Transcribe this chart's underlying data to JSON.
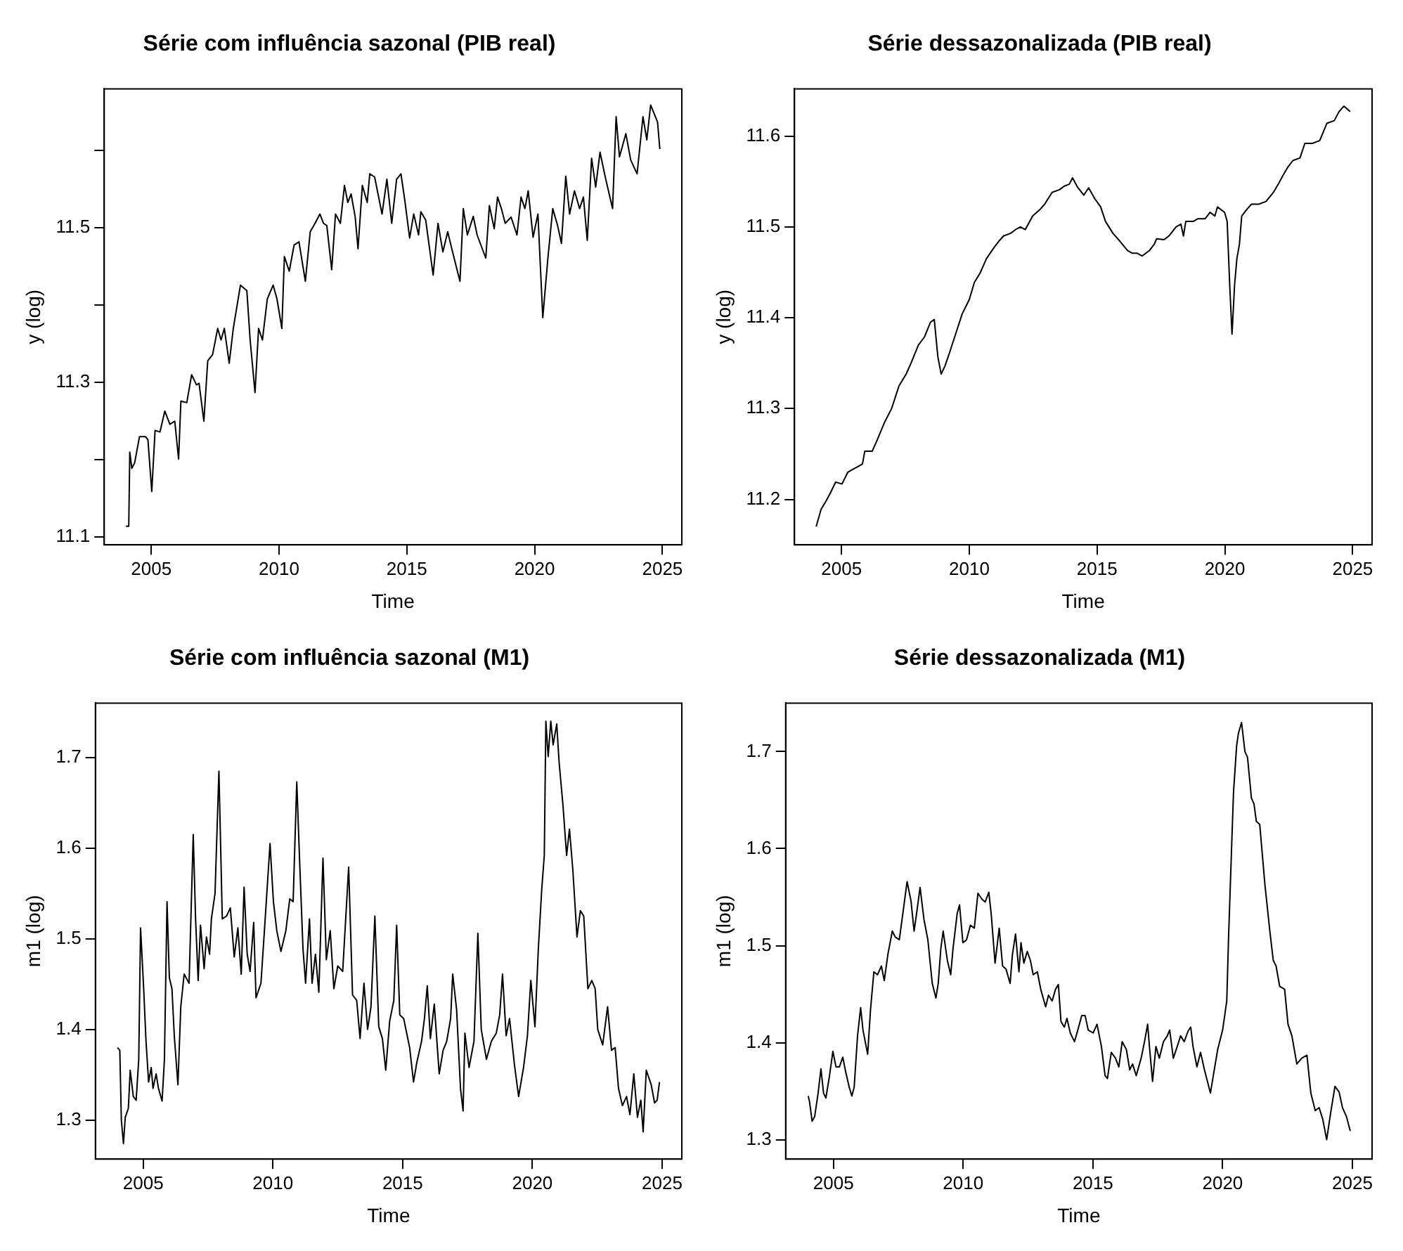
{
  "chart_data": [
    {
      "type": "line",
      "title": "Série com influência sazonal (PIB real)",
      "xlabel": "Time",
      "ylabel": "y (log)",
      "xlim": [
        2003.16,
        2025.76
      ],
      "ylim": [
        11.09,
        11.68
      ],
      "xticks": [
        2005,
        2010,
        2015,
        2020,
        2025
      ],
      "yticks": [
        11.1,
        {
          "value": 11.2,
          "label": null
        },
        11.3,
        {
          "value": 11.4,
          "label": null
        },
        11.5,
        {
          "value": 11.6,
          "label": null
        }
      ],
      "grid": false,
      "series": [
        {
          "color": "#000000",
          "x": [
            2004.01,
            2004.12,
            2004.16,
            2004.24,
            2004.35,
            2004.54,
            2004.77,
            2004.87,
            2005.02,
            2005.15,
            2005.34,
            2005.53,
            2005.73,
            2005.92,
            2006.07,
            2006.16,
            2006.39,
            2006.58,
            2006.77,
            2006.87,
            2007.06,
            2007.21,
            2007.4,
            2007.6,
            2007.73,
            2007.86,
            2008.05,
            2008.21,
            2008.49,
            2008.74,
            2008.87,
            2009.06,
            2009.2,
            2009.35,
            2009.54,
            2009.77,
            2009.92,
            2010.11,
            2010.21,
            2010.4,
            2010.59,
            2010.78,
            2011.03,
            2011.22,
            2011.41,
            2011.6,
            2011.74,
            2011.87,
            2012.06,
            2012.21,
            2012.4,
            2012.56,
            2012.69,
            2012.82,
            2012.98,
            2013.09,
            2013.26,
            2013.45,
            2013.55,
            2013.74,
            2014.03,
            2014.22,
            2014.41,
            2014.6,
            2014.77,
            2014.92,
            2015.11,
            2015.27,
            2015.46,
            2015.55,
            2015.74,
            2016.03,
            2016.22,
            2016.41,
            2016.6,
            2016.79,
            2017.08,
            2017.21,
            2017.37,
            2017.6,
            2017.75,
            2018.09,
            2018.23,
            2018.42,
            2018.55,
            2018.7,
            2018.85,
            2019.08,
            2019.31,
            2019.47,
            2019.62,
            2019.75,
            2019.94,
            2020.13,
            2020.32,
            2020.52,
            2020.71,
            2020.9,
            2021.05,
            2021.22,
            2021.37,
            2021.56,
            2021.76,
            2021.91,
            2022.06,
            2022.23,
            2022.39,
            2022.56,
            2022.75,
            2023.05,
            2023.19,
            2023.32,
            2023.57,
            2023.76,
            2024.01,
            2024.24,
            2024.39,
            2024.54,
            2024.81,
            2024.9
          ],
          "values": [
            11.114,
            11.114,
            11.21,
            11.189,
            11.196,
            11.23,
            11.23,
            11.226,
            11.159,
            11.238,
            11.236,
            11.263,
            11.246,
            11.25,
            11.201,
            11.276,
            11.274,
            11.31,
            11.297,
            11.299,
            11.25,
            11.328,
            11.336,
            11.37,
            11.355,
            11.37,
            11.325,
            11.37,
            11.426,
            11.419,
            11.355,
            11.287,
            11.37,
            11.355,
            11.408,
            11.426,
            11.408,
            11.37,
            11.463,
            11.444,
            11.478,
            11.482,
            11.431,
            11.495,
            11.506,
            11.518,
            11.506,
            11.503,
            11.446,
            11.518,
            11.506,
            11.555,
            11.533,
            11.544,
            11.514,
            11.473,
            11.555,
            11.533,
            11.57,
            11.566,
            11.518,
            11.563,
            11.506,
            11.563,
            11.57,
            11.536,
            11.487,
            11.518,
            11.491,
            11.521,
            11.51,
            11.439,
            11.506,
            11.469,
            11.495,
            11.469,
            11.431,
            11.525,
            11.491,
            11.515,
            11.491,
            11.461,
            11.529,
            11.499,
            11.54,
            11.525,
            11.506,
            11.514,
            11.491,
            11.54,
            11.525,
            11.548,
            11.488,
            11.518,
            11.384,
            11.461,
            11.525,
            11.503,
            11.48,
            11.567,
            11.518,
            11.548,
            11.525,
            11.54,
            11.484,
            11.59,
            11.553,
            11.598,
            11.568,
            11.525,
            11.644,
            11.592,
            11.622,
            11.588,
            11.57,
            11.644,
            11.614,
            11.659,
            11.637,
            11.602
          ]
        }
      ]
    },
    {
      "type": "line",
      "title": "Série dessazonalizada (PIB real)",
      "xlabel": "Time",
      "ylabel": "y (log)",
      "xlim": [
        2003.16,
        2025.76
      ],
      "ylim": [
        11.15,
        11.652
      ],
      "xticks": [
        2005,
        2010,
        2015,
        2020,
        2025
      ],
      "yticks": [
        11.2,
        11.3,
        11.4,
        11.5,
        11.6
      ],
      "grid": false,
      "series": [
        {
          "color": "#000000",
          "x": [
            2004.01,
            2004.2,
            2004.39,
            2004.58,
            2004.77,
            2005.02,
            2005.25,
            2005.44,
            2005.63,
            2005.82,
            2005.91,
            2006.2,
            2006.39,
            2006.67,
            2006.96,
            2007.25,
            2007.53,
            2007.72,
            2008.01,
            2008.25,
            2008.48,
            2008.63,
            2008.77,
            2008.9,
            2009.05,
            2009.21,
            2009.43,
            2009.72,
            2010.0,
            2010.2,
            2010.42,
            2010.67,
            2010.96,
            2011.15,
            2011.34,
            2011.62,
            2011.81,
            2012.0,
            2012.19,
            2012.48,
            2012.76,
            2012.95,
            2013.24,
            2013.53,
            2013.72,
            2013.91,
            2014.04,
            2014.23,
            2014.48,
            2014.67,
            2014.91,
            2015.14,
            2015.33,
            2015.62,
            2015.9,
            2016.19,
            2016.38,
            2016.57,
            2016.76,
            2017.05,
            2017.24,
            2017.33,
            2017.62,
            2017.81,
            2018.09,
            2018.28,
            2018.38,
            2018.47,
            2018.76,
            2018.95,
            2019.23,
            2019.42,
            2019.61,
            2019.71,
            2019.99,
            2020.09,
            2020.19,
            2020.28,
            2020.38,
            2020.47,
            2020.57,
            2020.66,
            2020.85,
            2021.04,
            2021.33,
            2021.61,
            2021.9,
            2022.09,
            2022.28,
            2022.47,
            2022.66,
            2022.94,
            2023.13,
            2023.42,
            2023.71,
            2023.99,
            2024.28,
            2024.47,
            2024.66,
            2024.9
          ],
          "values": [
            11.17,
            11.189,
            11.198,
            11.208,
            11.219,
            11.217,
            11.23,
            11.233,
            11.236,
            11.239,
            11.253,
            11.253,
            11.265,
            11.284,
            11.3,
            11.325,
            11.338,
            11.35,
            11.37,
            11.379,
            11.395,
            11.398,
            11.357,
            11.338,
            11.347,
            11.36,
            11.379,
            11.404,
            11.42,
            11.439,
            11.449,
            11.465,
            11.477,
            11.484,
            11.49,
            11.493,
            11.497,
            11.5,
            11.497,
            11.512,
            11.519,
            11.525,
            11.538,
            11.541,
            11.545,
            11.547,
            11.554,
            11.544,
            11.535,
            11.543,
            11.531,
            11.522,
            11.506,
            11.493,
            11.484,
            11.474,
            11.471,
            11.471,
            11.468,
            11.474,
            11.481,
            11.487,
            11.486,
            11.49,
            11.5,
            11.503,
            11.49,
            11.506,
            11.506,
            11.509,
            11.509,
            11.516,
            11.512,
            11.522,
            11.516,
            11.506,
            11.436,
            11.382,
            11.436,
            11.465,
            11.481,
            11.512,
            11.519,
            11.525,
            11.525,
            11.528,
            11.538,
            11.547,
            11.557,
            11.566,
            11.573,
            11.576,
            11.592,
            11.592,
            11.595,
            11.614,
            11.617,
            11.627,
            11.633,
            11.627
          ]
        }
      ]
    },
    {
      "type": "line",
      "title": "Série com influência sazonal (M1)",
      "xlabel": "Time",
      "ylabel": "m1 (log)",
      "xlim": [
        2003.16,
        2025.76
      ],
      "ylim": [
        1.257,
        1.76
      ],
      "xticks": [
        2005,
        2010,
        2015,
        2020,
        2025
      ],
      "yticks": [
        1.3,
        1.4,
        1.5,
        1.6,
        1.7
      ],
      "grid": false,
      "series": [
        {
          "color": "#000000",
          "x": [
            2004.01,
            2004.1,
            2004.16,
            2004.24,
            2004.31,
            2004.43,
            2004.5,
            2004.62,
            2004.73,
            2004.83,
            2004.9,
            2005.02,
            2005.11,
            2005.21,
            2005.31,
            2005.38,
            2005.5,
            2005.59,
            2005.73,
            2005.82,
            2005.92,
            2006.01,
            2006.11,
            2006.2,
            2006.34,
            2006.45,
            2006.58,
            2006.77,
            2006.93,
            2007.02,
            2007.12,
            2007.21,
            2007.35,
            2007.44,
            2007.56,
            2007.63,
            2007.77,
            2007.92,
            2008.05,
            2008.21,
            2008.36,
            2008.51,
            2008.65,
            2008.78,
            2008.89,
            2009.01,
            2009.12,
            2009.26,
            2009.35,
            2009.54,
            2009.73,
            2009.89,
            2010.02,
            2010.15,
            2010.31,
            2010.5,
            2010.65,
            2010.78,
            2010.92,
            2011.03,
            2011.16,
            2011.26,
            2011.41,
            2011.51,
            2011.64,
            2011.77,
            2011.93,
            2012.06,
            2012.21,
            2012.35,
            2012.5,
            2012.69,
            2012.92,
            2013.07,
            2013.23,
            2013.36,
            2013.51,
            2013.65,
            2013.78,
            2013.93,
            2014.08,
            2014.22,
            2014.35,
            2014.5,
            2014.66,
            2014.77,
            2014.89,
            2015.04,
            2015.27,
            2015.42,
            2015.55,
            2015.73,
            2015.84,
            2015.95,
            2016.07,
            2016.22,
            2016.41,
            2016.56,
            2016.7,
            2016.85,
            2016.93,
            2017.08,
            2017.23,
            2017.33,
            2017.4,
            2017.56,
            2017.75,
            2017.9,
            2018.03,
            2018.23,
            2018.42,
            2018.61,
            2018.74,
            2018.85,
            2018.99,
            2019.12,
            2019.31,
            2019.47,
            2019.66,
            2019.81,
            2019.94,
            2020.1,
            2020.23,
            2020.36,
            2020.46,
            2020.52,
            2020.61,
            2020.71,
            2020.8,
            2020.94,
            2021.03,
            2021.18,
            2021.32,
            2021.43,
            2021.56,
            2021.72,
            2021.85,
            2021.98,
            2022.14,
            2022.29,
            2022.42,
            2022.52,
            2022.71,
            2022.9,
            2023.05,
            2023.19,
            2023.32,
            2023.47,
            2023.63,
            2023.76,
            2023.91,
            2024.05,
            2024.18,
            2024.27,
            2024.39,
            2024.58,
            2024.71,
            2024.81,
            2024.9
          ],
          "values": [
            1.38,
            1.377,
            1.3,
            1.274,
            1.303,
            1.313,
            1.355,
            1.326,
            1.322,
            1.367,
            1.512,
            1.445,
            1.387,
            1.342,
            1.358,
            1.335,
            1.351,
            1.335,
            1.321,
            1.367,
            1.541,
            1.457,
            1.445,
            1.393,
            1.339,
            1.425,
            1.461,
            1.451,
            1.615,
            1.522,
            1.454,
            1.515,
            1.467,
            1.502,
            1.483,
            1.522,
            1.55,
            1.685,
            1.522,
            1.525,
            1.534,
            1.48,
            1.512,
            1.461,
            1.557,
            1.483,
            1.464,
            1.518,
            1.435,
            1.451,
            1.534,
            1.605,
            1.541,
            1.509,
            1.486,
            1.509,
            1.544,
            1.541,
            1.673,
            1.586,
            1.489,
            1.451,
            1.522,
            1.451,
            1.483,
            1.441,
            1.589,
            1.477,
            1.509,
            1.445,
            1.47,
            1.464,
            1.579,
            1.438,
            1.432,
            1.39,
            1.451,
            1.4,
            1.425,
            1.525,
            1.403,
            1.39,
            1.355,
            1.409,
            1.432,
            1.515,
            1.416,
            1.412,
            1.38,
            1.342,
            1.364,
            1.387,
            1.412,
            1.448,
            1.39,
            1.428,
            1.351,
            1.377,
            1.387,
            1.412,
            1.461,
            1.422,
            1.335,
            1.31,
            1.396,
            1.358,
            1.387,
            1.506,
            1.4,
            1.367,
            1.387,
            1.396,
            1.416,
            1.461,
            1.393,
            1.412,
            1.361,
            1.326,
            1.358,
            1.393,
            1.454,
            1.403,
            1.489,
            1.554,
            1.592,
            1.74,
            1.701,
            1.74,
            1.714,
            1.737,
            1.695,
            1.647,
            1.592,
            1.621,
            1.576,
            1.502,
            1.531,
            1.525,
            1.445,
            1.454,
            1.445,
            1.4,
            1.383,
            1.425,
            1.377,
            1.38,
            1.335,
            1.316,
            1.326,
            1.306,
            1.351,
            1.303,
            1.322,
            1.287,
            1.355,
            1.339,
            1.319,
            1.322,
            1.342
          ]
        }
      ]
    },
    {
      "type": "line",
      "title": "Série dessazonalizada (M1)",
      "xlabel": "Time",
      "ylabel": "m1 (log)",
      "xlim": [
        2003.16,
        2025.76
      ],
      "ylim": [
        1.28,
        1.75
      ],
      "xticks": [
        2005,
        2010,
        2015,
        2020,
        2025
      ],
      "yticks": [
        1.3,
        1.4,
        1.5,
        1.6,
        1.7
      ],
      "grid": false,
      "series": [
        {
          "color": "#000000",
          "x": [
            2004.03,
            2004.08,
            2004.18,
            2004.28,
            2004.41,
            2004.52,
            2004.62,
            2004.71,
            2004.85,
            2004.98,
            2005.1,
            2005.23,
            2005.36,
            2005.48,
            2005.61,
            2005.71,
            2005.8,
            2005.93,
            2006.05,
            2006.14,
            2006.32,
            2006.43,
            2006.56,
            2006.7,
            2006.85,
            2006.96,
            2007.1,
            2007.27,
            2007.38,
            2007.54,
            2007.69,
            2007.84,
            2007.99,
            2008.11,
            2008.22,
            2008.34,
            2008.49,
            2008.64,
            2008.81,
            2008.95,
            2009.04,
            2009.14,
            2009.23,
            2009.39,
            2009.52,
            2009.61,
            2009.77,
            2009.86,
            2009.99,
            2010.13,
            2010.28,
            2010.43,
            2010.57,
            2010.72,
            2010.85,
            2010.99,
            2011.08,
            2011.23,
            2011.39,
            2011.52,
            2011.65,
            2011.81,
            2011.9,
            2012.02,
            2012.15,
            2012.23,
            2012.34,
            2012.47,
            2012.59,
            2012.7,
            2012.86,
            2012.99,
            2013.18,
            2013.29,
            2013.43,
            2013.56,
            2013.67,
            2013.77,
            2013.9,
            2014.0,
            2014.13,
            2014.29,
            2014.42,
            2014.57,
            2014.7,
            2014.82,
            2015.01,
            2015.16,
            2015.33,
            2015.47,
            2015.56,
            2015.71,
            2015.87,
            2016.0,
            2016.13,
            2016.29,
            2016.42,
            2016.53,
            2016.67,
            2016.86,
            2016.99,
            2017.11,
            2017.18,
            2017.3,
            2017.43,
            2017.56,
            2017.72,
            2017.87,
            2017.96,
            2018.1,
            2018.25,
            2018.38,
            2018.52,
            2018.67,
            2018.77,
            2018.86,
            2019.01,
            2019.15,
            2019.3,
            2019.53,
            2019.66,
            2019.81,
            2020.0,
            2020.16,
            2020.23,
            2020.35,
            2020.42,
            2020.54,
            2020.61,
            2020.73,
            2020.86,
            2020.96,
            2021.11,
            2021.21,
            2021.3,
            2021.43,
            2021.63,
            2021.82,
            2021.95,
            2022.06,
            2022.2,
            2022.39,
            2022.52,
            2022.67,
            2022.86,
            2023.05,
            2023.25,
            2023.4,
            2023.57,
            2023.72,
            2023.86,
            2024.01,
            2024.16,
            2024.33,
            2024.49,
            2024.62,
            2024.77,
            2024.92
          ],
          "values": [
            1.345,
            1.339,
            1.319,
            1.324,
            1.348,
            1.373,
            1.348,
            1.343,
            1.366,
            1.391,
            1.375,
            1.375,
            1.385,
            1.369,
            1.354,
            1.345,
            1.354,
            1.407,
            1.436,
            1.413,
            1.388,
            1.434,
            1.473,
            1.47,
            1.479,
            1.464,
            1.491,
            1.515,
            1.509,
            1.506,
            1.536,
            1.566,
            1.546,
            1.515,
            1.536,
            1.56,
            1.527,
            1.506,
            1.461,
            1.446,
            1.461,
            1.497,
            1.515,
            1.485,
            1.47,
            1.497,
            1.533,
            1.542,
            1.503,
            1.506,
            1.521,
            1.518,
            1.554,
            1.548,
            1.545,
            1.555,
            1.533,
            1.482,
            1.518,
            1.479,
            1.476,
            1.461,
            1.491,
            1.512,
            1.473,
            1.503,
            1.482,
            1.494,
            1.485,
            1.47,
            1.473,
            1.455,
            1.437,
            1.449,
            1.443,
            1.455,
            1.46,
            1.422,
            1.416,
            1.425,
            1.41,
            1.401,
            1.413,
            1.428,
            1.428,
            1.413,
            1.41,
            1.419,
            1.396,
            1.366,
            1.363,
            1.39,
            1.384,
            1.375,
            1.401,
            1.393,
            1.372,
            1.378,
            1.366,
            1.384,
            1.401,
            1.419,
            1.396,
            1.36,
            1.396,
            1.384,
            1.401,
            1.407,
            1.413,
            1.384,
            1.396,
            1.407,
            1.401,
            1.412,
            1.416,
            1.396,
            1.375,
            1.39,
            1.372,
            1.348,
            1.369,
            1.393,
            1.413,
            1.443,
            1.509,
            1.604,
            1.658,
            1.706,
            1.719,
            1.73,
            1.7,
            1.694,
            1.652,
            1.646,
            1.628,
            1.625,
            1.563,
            1.515,
            1.485,
            1.479,
            1.458,
            1.455,
            1.419,
            1.407,
            1.378,
            1.384,
            1.387,
            1.348,
            1.33,
            1.333,
            1.321,
            1.3,
            1.327,
            1.355,
            1.349,
            1.333,
            1.324,
            1.309
          ]
        }
      ]
    }
  ]
}
